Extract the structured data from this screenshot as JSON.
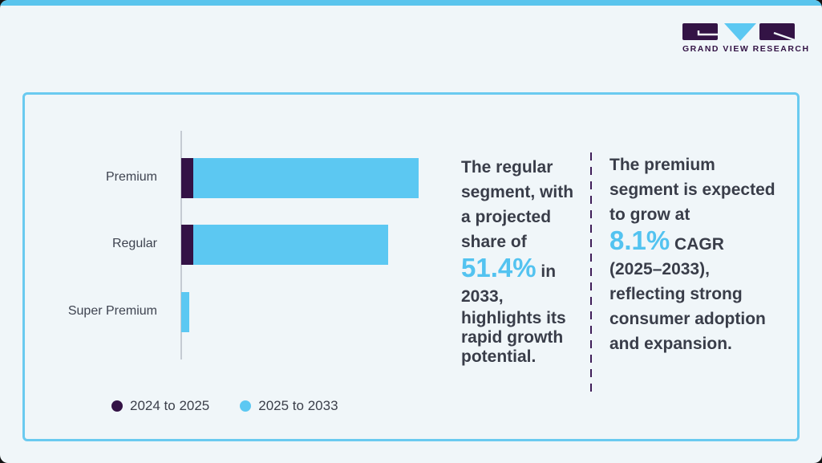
{
  "brand": {
    "name": "GRAND VIEW RESEARCH",
    "logo_dark_color": "#331345",
    "logo_blue_color": "#5cc8f2"
  },
  "colors": {
    "background": "#f0f6f9",
    "top_strip": "#59c4ed",
    "card_border": "#6acaf0",
    "axis": "#c5cbd3",
    "text_dark": "#393d49",
    "highlight_blue": "#53c3f0",
    "divider_purple": "#3f1d58"
  },
  "chart_data": {
    "type": "bar",
    "orientation": "horizontal",
    "stacked": true,
    "title": "",
    "xlabel": "",
    "ylabel": "",
    "categories": [
      "Premium",
      "Regular",
      "Super Premium"
    ],
    "series": [
      {
        "name": "2024 to 2025",
        "color": "#331245",
        "values": [
          5,
          5,
          0
        ]
      },
      {
        "name": "2025 to 2033",
        "color": "#5cc8f2",
        "values": [
          93.5,
          81,
          3.3
        ]
      }
    ],
    "value_units": "relative bar length (axis unlabeled), 0-100 scale estimated from pixels",
    "xlim": [
      0,
      100
    ],
    "grid": false,
    "legend_position": "bottom-left",
    "legend": [
      "2024 to 2025",
      "2025 to 2033"
    ]
  },
  "insights": {
    "left": {
      "lines": [
        [
          {
            "t": "The regular"
          }
        ],
        [
          {
            "t": "segment, with"
          }
        ],
        [
          {
            "t": "a projected"
          }
        ],
        [
          {
            "t": "share of"
          }
        ],
        [
          {
            "t": "51.4%",
            "big": true
          },
          {
            "t": " in"
          }
        ],
        [
          {
            "t": "2033,"
          }
        ],
        [
          {
            "t": "highlights its"
          }
        ],
        [
          {
            "t": "rapid growth"
          }
        ],
        [
          {
            "t": "potential."
          }
        ]
      ],
      "plain_text": "The regular segment, with a projected share of 51.4% in 2033, highlights its rapid growth potential.",
      "highlight": "51.4%"
    },
    "right": {
      "lines": [
        [
          {
            "t": "The premium"
          }
        ],
        [
          {
            "t": "segment is expected"
          }
        ],
        [
          {
            "t": "to grow at"
          }
        ],
        [
          {
            "t": "8.1%",
            "big": true
          },
          {
            "t": " CAGR"
          }
        ],
        [
          {
            "t": "(2025–2033),"
          }
        ],
        [
          {
            "t": "reflecting strong"
          }
        ],
        [
          {
            "t": "consumer adoption"
          }
        ],
        [
          {
            "t": "and expansion."
          }
        ]
      ],
      "plain_text": "The premium segment is expected to grow at 8.1% CAGR (2025–2033), reflecting strong consumer adoption and expansion.",
      "highlight": "8.1%"
    }
  }
}
